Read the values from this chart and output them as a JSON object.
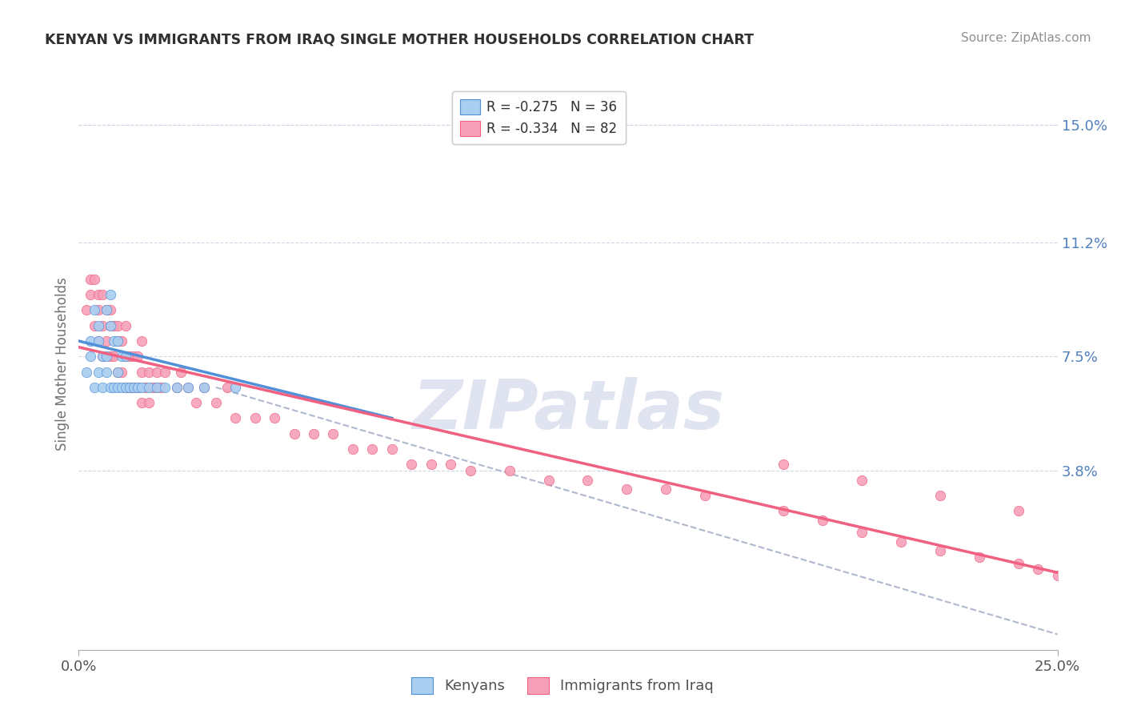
{
  "title": "KENYAN VS IMMIGRANTS FROM IRAQ SINGLE MOTHER HOUSEHOLDS CORRELATION CHART",
  "source": "Source: ZipAtlas.com",
  "ylabel": "Single Mother Households",
  "right_yticks": [
    0.15,
    0.112,
    0.075,
    0.038
  ],
  "right_ytick_labels": [
    "15.0%",
    "11.2%",
    "7.5%",
    "3.8%"
  ],
  "xlim": [
    0.0,
    0.25
  ],
  "ylim": [
    -0.02,
    0.165
  ],
  "legend_entry1": "R = -0.275   N = 36",
  "legend_entry2": "R = -0.334   N = 82",
  "legend_label1": "Kenyans",
  "legend_label2": "Immigrants from Iraq",
  "scatter_kenyan_color": "#a8cef0",
  "scatter_iraq_color": "#f5a0b8",
  "line_kenyan_color": "#5090d8",
  "line_iraq_color": "#f06080",
  "dashed_line_color": "#b0b8d0",
  "kenyan_x": [
    0.002,
    0.003,
    0.003,
    0.004,
    0.004,
    0.005,
    0.005,
    0.005,
    0.006,
    0.006,
    0.007,
    0.007,
    0.007,
    0.008,
    0.008,
    0.008,
    0.009,
    0.009,
    0.01,
    0.01,
    0.01,
    0.011,
    0.011,
    0.012,
    0.012,
    0.013,
    0.014,
    0.015,
    0.016,
    0.018,
    0.02,
    0.022,
    0.025,
    0.028,
    0.032,
    0.04
  ],
  "kenyan_y": [
    0.07,
    0.075,
    0.08,
    0.065,
    0.09,
    0.07,
    0.08,
    0.085,
    0.065,
    0.075,
    0.07,
    0.075,
    0.09,
    0.065,
    0.085,
    0.095,
    0.065,
    0.08,
    0.065,
    0.07,
    0.08,
    0.065,
    0.075,
    0.065,
    0.075,
    0.065,
    0.065,
    0.065,
    0.065,
    0.065,
    0.065,
    0.065,
    0.065,
    0.065,
    0.065,
    0.065
  ],
  "iraq_x": [
    0.002,
    0.003,
    0.003,
    0.004,
    0.004,
    0.005,
    0.005,
    0.005,
    0.006,
    0.006,
    0.006,
    0.007,
    0.007,
    0.008,
    0.008,
    0.008,
    0.009,
    0.009,
    0.01,
    0.01,
    0.01,
    0.011,
    0.011,
    0.012,
    0.012,
    0.012,
    0.013,
    0.013,
    0.014,
    0.014,
    0.015,
    0.015,
    0.016,
    0.016,
    0.016,
    0.017,
    0.018,
    0.018,
    0.019,
    0.02,
    0.02,
    0.021,
    0.022,
    0.025,
    0.026,
    0.028,
    0.03,
    0.032,
    0.035,
    0.038,
    0.04,
    0.045,
    0.05,
    0.055,
    0.06,
    0.065,
    0.07,
    0.075,
    0.08,
    0.085,
    0.09,
    0.095,
    0.1,
    0.11,
    0.12,
    0.13,
    0.14,
    0.15,
    0.16,
    0.18,
    0.19,
    0.2,
    0.21,
    0.22,
    0.23,
    0.24,
    0.245,
    0.25,
    0.18,
    0.2,
    0.22,
    0.24
  ],
  "iraq_y": [
    0.09,
    0.095,
    0.1,
    0.085,
    0.1,
    0.08,
    0.09,
    0.095,
    0.075,
    0.085,
    0.095,
    0.08,
    0.09,
    0.075,
    0.085,
    0.09,
    0.075,
    0.085,
    0.07,
    0.08,
    0.085,
    0.07,
    0.08,
    0.065,
    0.075,
    0.085,
    0.065,
    0.075,
    0.065,
    0.075,
    0.065,
    0.075,
    0.06,
    0.07,
    0.08,
    0.065,
    0.06,
    0.07,
    0.065,
    0.065,
    0.07,
    0.065,
    0.07,
    0.065,
    0.07,
    0.065,
    0.06,
    0.065,
    0.06,
    0.065,
    0.055,
    0.055,
    0.055,
    0.05,
    0.05,
    0.05,
    0.045,
    0.045,
    0.045,
    0.04,
    0.04,
    0.04,
    0.038,
    0.038,
    0.035,
    0.035,
    0.032,
    0.032,
    0.03,
    0.025,
    0.022,
    0.018,
    0.015,
    0.012,
    0.01,
    0.008,
    0.006,
    0.004,
    0.04,
    0.035,
    0.03,
    0.025
  ],
  "kenyan_line_x": [
    0.0,
    0.08
  ],
  "kenyan_line_y": [
    0.08,
    0.055
  ],
  "iraq_line_x": [
    0.0,
    0.25
  ],
  "iraq_line_y": [
    0.078,
    0.005
  ],
  "dashed_line_x": [
    0.035,
    0.25
  ],
  "dashed_line_y": [
    0.065,
    -0.015
  ],
  "background_color": "#ffffff",
  "grid_color": "#d0d8e8",
  "title_color": "#303030",
  "source_color": "#909090",
  "right_axis_label_color": "#5080c0",
  "watermark_text": "ZIPatlas",
  "watermark_color": "#e0e4f0"
}
